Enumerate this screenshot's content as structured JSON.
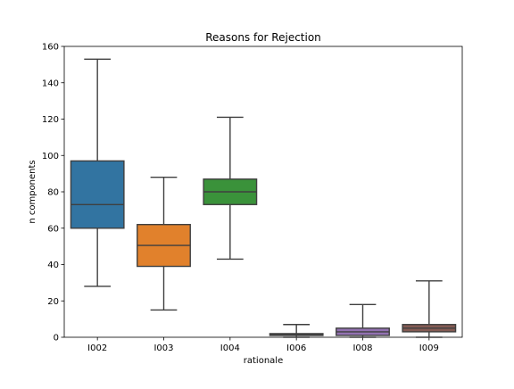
{
  "chart_data": {
    "type": "box",
    "title": "Reasons for Rejection",
    "xlabel": "rationale",
    "ylabel": "n components",
    "ylim": [
      0,
      160
    ],
    "yticks": [
      0,
      20,
      40,
      60,
      80,
      100,
      120,
      140,
      160
    ],
    "grid": false,
    "legend": "none",
    "categories": [
      "I002",
      "I003",
      "I004",
      "I006",
      "I008",
      "I009"
    ],
    "colors": [
      "#3274a1",
      "#e1812c",
      "#3a923a",
      "#c03d3e",
      "#9372b2",
      "#845b53"
    ],
    "boxes": [
      {
        "category": "I002",
        "whisker_low": 28,
        "q1": 60,
        "median": 73,
        "q3": 97,
        "whisker_high": 153
      },
      {
        "category": "I003",
        "whisker_low": 15,
        "q1": 39,
        "median": 50.5,
        "q3": 62,
        "whisker_high": 88
      },
      {
        "category": "I004",
        "whisker_low": 43,
        "q1": 73,
        "median": 80,
        "q3": 87,
        "whisker_high": 121
      },
      {
        "category": "I006",
        "whisker_low": 0,
        "q1": 1,
        "median": 1.5,
        "q3": 2,
        "whisker_high": 7
      },
      {
        "category": "I008",
        "whisker_low": 0,
        "q1": 1,
        "median": 3,
        "q3": 5,
        "whisker_high": 18
      },
      {
        "category": "I009",
        "whisker_low": 0,
        "q1": 3,
        "median": 5,
        "q3": 7,
        "whisker_high": 31
      }
    ]
  }
}
